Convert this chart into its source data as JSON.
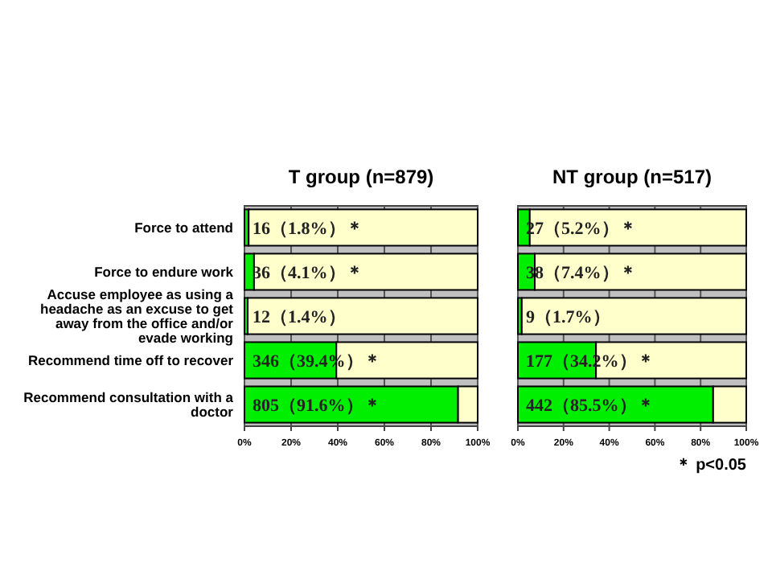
{
  "chart_data": [
    {
      "type": "bar",
      "orientation": "horizontal",
      "stacked": true,
      "title": "T group (n=879)",
      "categories": [
        "Force to attend",
        "Force to endure work",
        "Accuse  employee as using a headache as an excuse to get away from the office and/or evade working",
        "Recommend time off to recover",
        "Recommend consultation with a doctor"
      ],
      "series": [
        {
          "color": "#00ee00",
          "values": [
            1.8,
            4.1,
            1.4,
            39.4,
            91.6
          ],
          "value_labels": [
            "16（1.8%）＊",
            "36（4.1%）＊",
            "12（1.4%）",
            "346（39.4%）＊",
            "805（91.6%）＊"
          ]
        },
        {
          "color": "#ffffcc",
          "values": [
            98.2,
            95.9,
            98.6,
            60.6,
            8.4
          ]
        }
      ],
      "xlim": [
        0,
        100
      ],
      "xticks": [
        {
          "value": 0,
          "label": "0%"
        },
        {
          "value": 20,
          "label": "20%"
        },
        {
          "value": 40,
          "label": "40%"
        },
        {
          "value": 60,
          "label": "60%"
        },
        {
          "value": 80,
          "label": "80%"
        },
        {
          "value": 100,
          "label": "100%"
        }
      ],
      "grid": "x"
    },
    {
      "type": "bar",
      "orientation": "horizontal",
      "stacked": true,
      "title": "NT group (n=517)",
      "series": [
        {
          "color": "#00ee00",
          "values": [
            5.2,
            7.4,
            1.7,
            34.2,
            85.5
          ],
          "value_labels": [
            "27（5.2%）＊",
            "38（7.4%）＊",
            "9（1.7%）",
            "177（34.2%）＊",
            "442（85.5%）＊"
          ]
        },
        {
          "color": "#ffffcc",
          "values": [
            94.8,
            92.6,
            98.3,
            65.8,
            14.5
          ]
        }
      ],
      "xlim": [
        0,
        100
      ],
      "xticks": [
        {
          "value": 0,
          "label": "0%"
        },
        {
          "value": 20,
          "label": "20%"
        },
        {
          "value": 40,
          "label": "40%"
        },
        {
          "value": 60,
          "label": "60%"
        },
        {
          "value": 80,
          "label": "80%"
        },
        {
          "value": 100,
          "label": "100%"
        }
      ],
      "grid": "x",
      "tick_labels": "x",
      "annotations": [
        "＊ p<0.05"
      ]
    }
  ]
}
